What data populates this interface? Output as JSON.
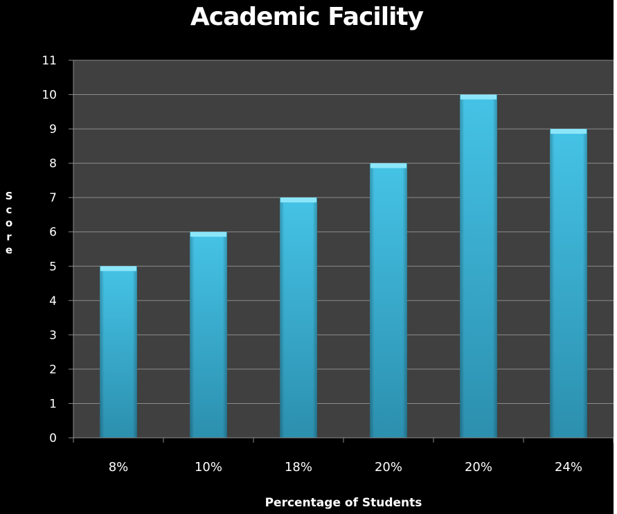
{
  "chart_data": {
    "type": "bar",
    "title": "Academic Facility",
    "xlabel": "Percentage of Students",
    "ylabel": "Score",
    "categories": [
      "8%",
      "10%",
      "18%",
      "20%",
      "20%",
      "24%"
    ],
    "series": [
      {
        "values": [
          5,
          6,
          7,
          8,
          10,
          9
        ]
      }
    ],
    "ylim": [
      0,
      11
    ],
    "yticks": [
      0,
      1,
      2,
      3,
      4,
      5,
      6,
      7,
      8,
      9,
      10,
      11
    ],
    "grid": "horizontal",
    "legend": "none",
    "colors": {
      "background": "#000000",
      "plot_area": "#404040",
      "bar": "#3db8dc",
      "bar_top": "#8ce6fa",
      "grid": "#8c8c8c",
      "text": "#ffffff"
    }
  }
}
